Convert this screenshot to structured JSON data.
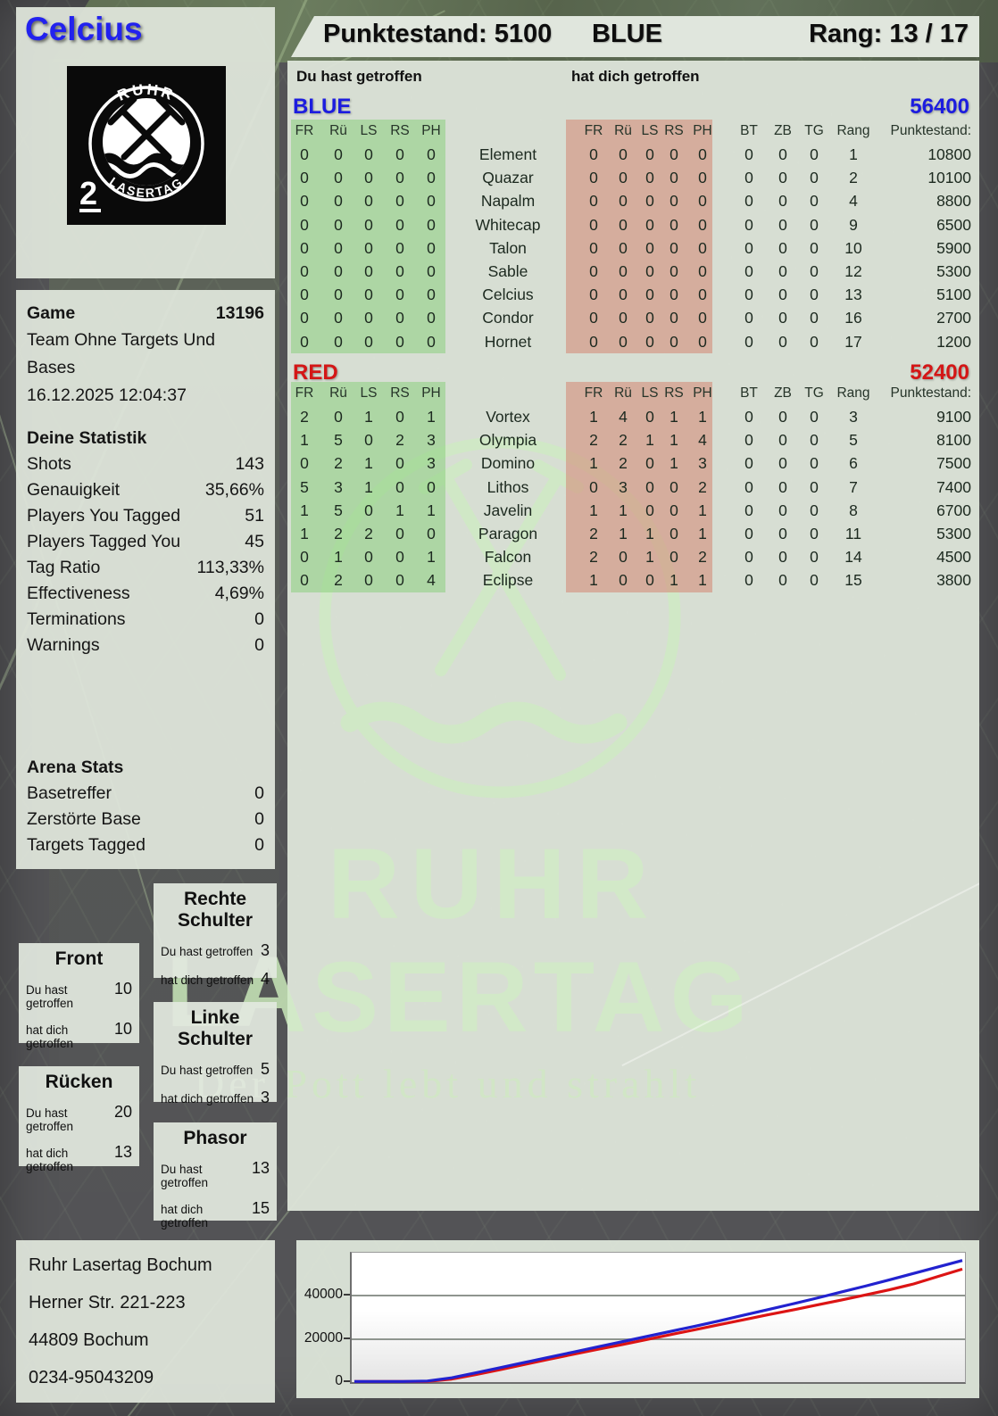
{
  "player": {
    "name": "Celcius"
  },
  "header": {
    "punktestand_label": "Punktestand:",
    "punktestand_value": "5100",
    "team": "BLUE",
    "rang_label": "Rang:",
    "rang_value": "13 / 17"
  },
  "logo": {
    "arc_top": "RUHR",
    "arc_bottom": "LASERTAG",
    "badge": "2"
  },
  "game": {
    "label": "Game",
    "id": "13196",
    "mode": "Team Ohne Targets Und Bases",
    "datetime": "16.12.2025 12:04:37"
  },
  "stats": {
    "title": "Deine Statistik",
    "rows": [
      {
        "label": "Shots",
        "value": "143"
      },
      {
        "label": "Genauigkeit",
        "value": "35,66%"
      },
      {
        "label": "Players You Tagged",
        "value": "51"
      },
      {
        "label": "Players Tagged You",
        "value": "45"
      },
      {
        "label": "Tag Ratio",
        "value": "113,33%"
      },
      {
        "label": "Effectiveness",
        "value": "4,69%"
      },
      {
        "label": "Terminations",
        "value": "0"
      },
      {
        "label": "Warnings",
        "value": "0"
      }
    ]
  },
  "arena": {
    "title": "Arena Stats",
    "rows": [
      {
        "label": "Basetreffer",
        "value": "0"
      },
      {
        "label": "Zerstörte Base",
        "value": "0"
      },
      {
        "label": "Targets Tagged",
        "value": "0"
      }
    ]
  },
  "hitzone_labels": {
    "du": "Du hast getroffen",
    "dich": "hat dich getroffen"
  },
  "hitzones": [
    {
      "title": "Front",
      "du_value": "10",
      "dich_value": "10"
    },
    {
      "title": "Rücken",
      "du_value": "20",
      "dich_value": "13"
    },
    {
      "title": "Rechte Schulter",
      "du_value": "3",
      "dich_value": "4"
    },
    {
      "title": "Linke Schulter",
      "du_value": "5",
      "dich_value": "3"
    },
    {
      "title": "Phasor",
      "du_value": "13",
      "dich_value": "15"
    }
  ],
  "tables": {
    "du_header": "Du hast getroffen",
    "dich_header": "hat dich getroffen",
    "cols": [
      "FR",
      "Rü",
      "LS",
      "RS",
      "PH"
    ],
    "meta_cols": [
      "BT",
      "ZB",
      "TG",
      "Rang",
      "Punktestand:"
    ],
    "teams": [
      {
        "name": "BLUE",
        "color": "#1c1cdf",
        "total": "56400",
        "rows": [
          {
            "hits": [
              0,
              0,
              0,
              0,
              0
            ],
            "name": "Element",
            "taken": [
              0,
              0,
              0,
              0,
              0
            ],
            "bt": 0,
            "zb": 0,
            "tg": 0,
            "rang": "1",
            "punkte": "10800"
          },
          {
            "hits": [
              0,
              0,
              0,
              0,
              0
            ],
            "name": "Quazar",
            "taken": [
              0,
              0,
              0,
              0,
              0
            ],
            "bt": 0,
            "zb": 0,
            "tg": 0,
            "rang": "2",
            "punkte": "10100"
          },
          {
            "hits": [
              0,
              0,
              0,
              0,
              0
            ],
            "name": "Napalm",
            "taken": [
              0,
              0,
              0,
              0,
              0
            ],
            "bt": 0,
            "zb": 0,
            "tg": 0,
            "rang": "4",
            "punkte": "8800"
          },
          {
            "hits": [
              0,
              0,
              0,
              0,
              0
            ],
            "name": "Whitecap",
            "taken": [
              0,
              0,
              0,
              0,
              0
            ],
            "bt": 0,
            "zb": 0,
            "tg": 0,
            "rang": "9",
            "punkte": "6500"
          },
          {
            "hits": [
              0,
              0,
              0,
              0,
              0
            ],
            "name": "Talon",
            "taken": [
              0,
              0,
              0,
              0,
              0
            ],
            "bt": 0,
            "zb": 0,
            "tg": 0,
            "rang": "10",
            "punkte": "5900"
          },
          {
            "hits": [
              0,
              0,
              0,
              0,
              0
            ],
            "name": "Sable",
            "taken": [
              0,
              0,
              0,
              0,
              0
            ],
            "bt": 0,
            "zb": 0,
            "tg": 0,
            "rang": "12",
            "punkte": "5300"
          },
          {
            "hits": [
              0,
              0,
              0,
              0,
              0
            ],
            "name": "Celcius",
            "taken": [
              0,
              0,
              0,
              0,
              0
            ],
            "bt": 0,
            "zb": 0,
            "tg": 0,
            "rang": "13",
            "punkte": "5100"
          },
          {
            "hits": [
              0,
              0,
              0,
              0,
              0
            ],
            "name": "Condor",
            "taken": [
              0,
              0,
              0,
              0,
              0
            ],
            "bt": 0,
            "zb": 0,
            "tg": 0,
            "rang": "16",
            "punkte": "2700"
          },
          {
            "hits": [
              0,
              0,
              0,
              0,
              0
            ],
            "name": "Hornet",
            "taken": [
              0,
              0,
              0,
              0,
              0
            ],
            "bt": 0,
            "zb": 0,
            "tg": 0,
            "rang": "17",
            "punkte": "1200"
          }
        ]
      },
      {
        "name": "RED",
        "color": "#d41616",
        "total": "52400",
        "rows": [
          {
            "hits": [
              2,
              0,
              1,
              0,
              1
            ],
            "name": "Vortex",
            "taken": [
              1,
              4,
              0,
              1,
              1
            ],
            "bt": 0,
            "zb": 0,
            "tg": 0,
            "rang": "3",
            "punkte": "9100"
          },
          {
            "hits": [
              1,
              5,
              0,
              2,
              3
            ],
            "name": "Olympia",
            "taken": [
              2,
              2,
              1,
              1,
              4
            ],
            "bt": 0,
            "zb": 0,
            "tg": 0,
            "rang": "5",
            "punkte": "8100"
          },
          {
            "hits": [
              0,
              2,
              1,
              0,
              3
            ],
            "name": "Domino",
            "taken": [
              1,
              2,
              0,
              1,
              3
            ],
            "bt": 0,
            "zb": 0,
            "tg": 0,
            "rang": "6",
            "punkte": "7500"
          },
          {
            "hits": [
              5,
              3,
              1,
              0,
              0
            ],
            "name": "Lithos",
            "taken": [
              0,
              3,
              0,
              0,
              2
            ],
            "bt": 0,
            "zb": 0,
            "tg": 0,
            "rang": "7",
            "punkte": "7400"
          },
          {
            "hits": [
              1,
              5,
              0,
              1,
              1
            ],
            "name": "Javelin",
            "taken": [
              1,
              1,
              0,
              0,
              1
            ],
            "bt": 0,
            "zb": 0,
            "tg": 0,
            "rang": "8",
            "punkte": "6700"
          },
          {
            "hits": [
              1,
              2,
              2,
              0,
              0
            ],
            "name": "Paragon",
            "taken": [
              2,
              1,
              1,
              0,
              1
            ],
            "bt": 0,
            "zb": 0,
            "tg": 0,
            "rang": "11",
            "punkte": "5300"
          },
          {
            "hits": [
              0,
              1,
              0,
              0,
              1
            ],
            "name": "Falcon",
            "taken": [
              2,
              0,
              1,
              0,
              2
            ],
            "bt": 0,
            "zb": 0,
            "tg": 0,
            "rang": "14",
            "punkte": "4500"
          },
          {
            "hits": [
              0,
              2,
              0,
              0,
              4
            ],
            "name": "Eclipse",
            "taken": [
              1,
              0,
              0,
              1,
              1
            ],
            "bt": 0,
            "zb": 0,
            "tg": 0,
            "rang": "15",
            "punkte": "3800"
          }
        ]
      }
    ]
  },
  "watermark": {
    "title_line1": "RUHR",
    "title_line2": "LASERTAG",
    "tagline": "Der Pott lebt und strahlt"
  },
  "footer": {
    "lines": [
      "Ruhr Lasertag Bochum",
      "Herner Str. 221-223",
      "44809 Bochum",
      "0234-95043209"
    ]
  },
  "chart_data": {
    "type": "line",
    "title": "",
    "xlabel": "",
    "ylabel": "",
    "ylim": [
      0,
      60000
    ],
    "yticks": [
      0,
      20000,
      40000
    ],
    "grid": true,
    "legend": "none",
    "series": [
      {
        "name": "BLUE",
        "color": "#2222cf",
        "values": [
          300,
          300,
          300,
          500,
          2000,
          4300,
          6700,
          9100,
          11500,
          13900,
          16300,
          18700,
          21100,
          23500,
          25900,
          28400,
          31000,
          33600,
          36200,
          38900,
          41700,
          44500,
          47400,
          50400,
          53400,
          56400
        ]
      },
      {
        "name": "RED",
        "color": "#dc1414",
        "values": [
          300,
          300,
          300,
          300,
          1400,
          3500,
          5800,
          8200,
          10600,
          12900,
          15200,
          17400,
          19700,
          22000,
          24300,
          26600,
          28900,
          31200,
          33400,
          35700,
          38000,
          40400,
          42800,
          45500,
          49000,
          52400
        ]
      }
    ]
  }
}
